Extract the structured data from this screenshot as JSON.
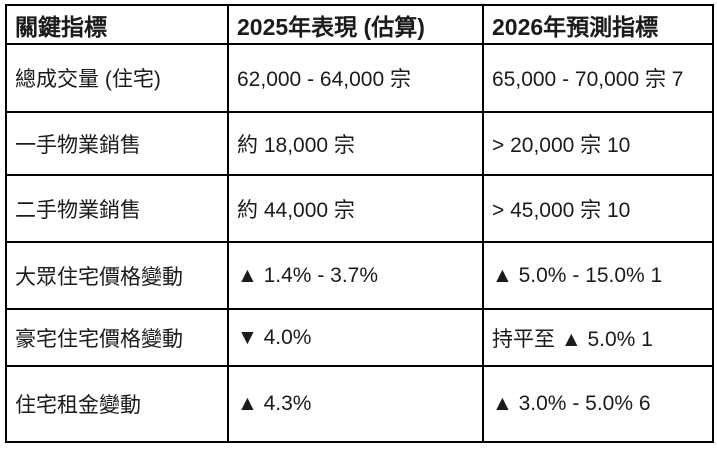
{
  "chart_data": {
    "type": "table",
    "columns": [
      "關鍵指標",
      "2025年表現 (估算)",
      "2026年預測指標"
    ],
    "rows": [
      [
        "總成交量 (住宅)",
        "62,000 - 64,000 宗",
        "65,000 - 70,000 宗 7"
      ],
      [
        "一手物業銷售",
        "約 18,000 宗",
        "> 20,000 宗 10"
      ],
      [
        "二手物業銷售",
        "約 44,000 宗",
        "> 45,000 宗 10"
      ],
      [
        "大眾住宅價格變動",
        "▲ 1.4% - 3.7%",
        "▲ 5.0% - 15.0% 1"
      ],
      [
        "豪宅住宅價格變動",
        "▼ 4.0%",
        "持平至 ▲ 5.0% 1"
      ],
      [
        "住宅租金變動",
        "▲ 4.3%",
        "▲ 3.0% - 5.0% 6"
      ]
    ],
    "icons": {
      "up_triangle": "▲",
      "down_triangle": "▼"
    },
    "colors": {
      "border": "#000000",
      "text": "#1b1b1b",
      "background": "#ffffff"
    },
    "layout": {
      "grid": "on",
      "header_style": "bold"
    }
  }
}
